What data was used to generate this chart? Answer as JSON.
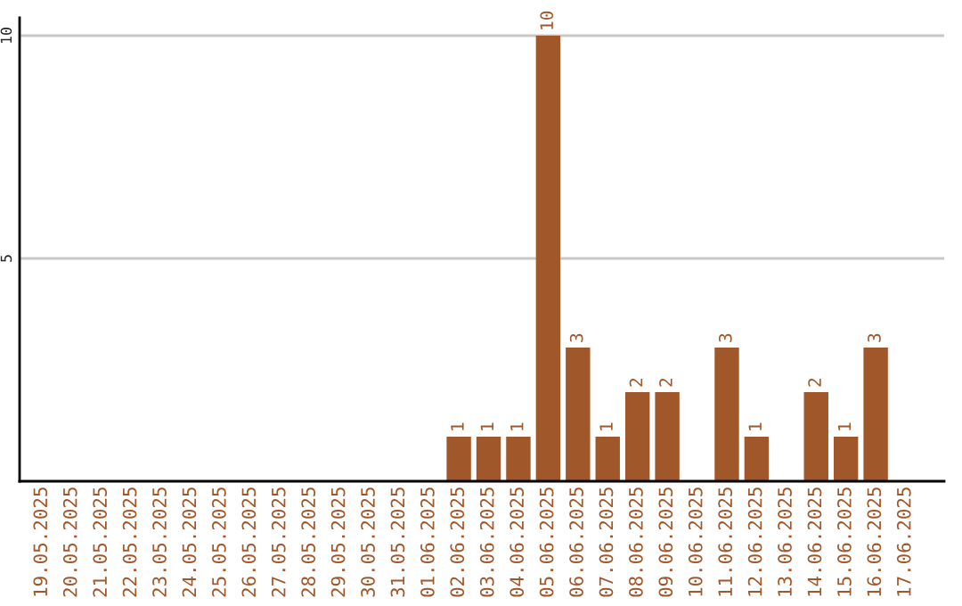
{
  "chart_data": {
    "type": "bar",
    "categories": [
      "19.05.2025",
      "20.05.2025",
      "21.05.2025",
      "22.05.2025",
      "23.05.2025",
      "24.05.2025",
      "25.05.2025",
      "26.05.2025",
      "27.05.2025",
      "28.05.2025",
      "29.05.2025",
      "30.05.2025",
      "31.05.2025",
      "01.06.2025",
      "02.06.2025",
      "03.06.2025",
      "04.06.2025",
      "05.06.2025",
      "06.06.2025",
      "07.06.2025",
      "08.06.2025",
      "09.06.2025",
      "10.06.2025",
      "11.06.2025",
      "12.06.2025",
      "13.06.2025",
      "14.06.2025",
      "15.06.2025",
      "16.06.2025",
      "17.06.2025"
    ],
    "values": [
      null,
      null,
      null,
      null,
      null,
      null,
      null,
      null,
      null,
      null,
      null,
      null,
      null,
      null,
      1,
      1,
      1,
      10,
      3,
      1,
      2,
      2,
      null,
      3,
      1,
      null,
      2,
      1,
      3,
      null
    ],
    "value_labels": [
      null,
      null,
      null,
      null,
      null,
      null,
      null,
      null,
      null,
      null,
      null,
      null,
      null,
      null,
      "1",
      "1",
      "1",
      "10",
      "3",
      "1",
      "2",
      "2",
      null,
      "3",
      "1",
      null,
      "2",
      "1",
      "3",
      null
    ],
    "color": "#a0572a",
    "ylim": [
      0,
      10.4
    ],
    "yticks": [
      5,
      10
    ],
    "grid": "y",
    "legend": false
  }
}
